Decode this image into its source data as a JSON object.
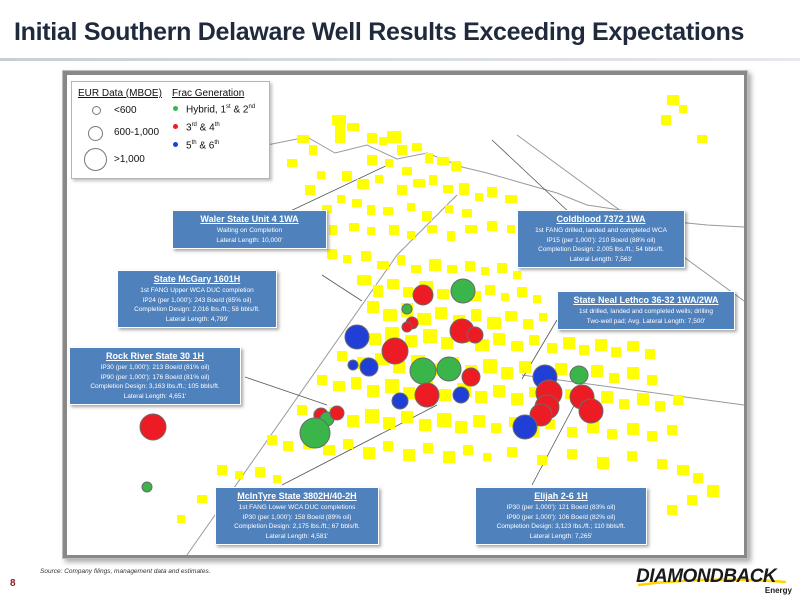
{
  "page": {
    "title": "Initial Southern Delaware Well Results Exceeding Expectations",
    "page_number": "8",
    "source": "Source:  Company filings, management data and estimates."
  },
  "logo": {
    "brand": "DIAMONDBACK",
    "sub": "Energy"
  },
  "legend": {
    "eur_header": "EUR Data (MBOE)",
    "eur_items": [
      "<600",
      "600-1,000",
      ">1,000"
    ],
    "frac_header": "Frac Generation",
    "frac_items": [
      {
        "pre": "Hybrid, 1",
        "sup1": "st",
        "mid": " & 2",
        "sup2": "nd",
        "color": "#39b54a"
      },
      {
        "pre": "3",
        "sup1": "rd",
        "mid": " & 4",
        "sup2": "th",
        "color": "#ed1c24"
      },
      {
        "pre": "5",
        "sup1": "th",
        "mid": " & 6",
        "sup2": "th",
        "color": "#1f3fd6"
      }
    ]
  },
  "callouts": {
    "waler": {
      "title": "Waler State Unit 4 1WA",
      "lines": [
        "Waiting on Completion",
        "Lateral Length: 10,000'"
      ]
    },
    "coldblood": {
      "title": "Coldblood 7372 1WA",
      "lines": [
        "1st FANG drilled, landed and completed WCA",
        "IP15 (per 1,000'): 210 Boe/d (88% oil)",
        "Completion Design: 2,005 lbs./ft.; 54 bbls/ft.",
        "Lateral Length: 7,563'"
      ]
    },
    "mcgary": {
      "title": "State McGary 1601H",
      "lines": [
        "1st FANG Upper WCA DUC completion",
        "IP24 (per 1,000'): 243 Boe/d (85% oil)",
        "Completion Design: 2,016 lbs./ft.; 58 bbls/ft.",
        "Lateral Length: 4,799'"
      ]
    },
    "neal": {
      "title": "State Neal Lethco 36-32 1WA/2WA",
      "lines": [
        "1st drilled, landed and completed wells; drilling",
        "Two-well pad; Avg. Lateral Length: 7,500'"
      ]
    },
    "rockriver": {
      "title": "Rock River State 30 1H",
      "lines": [
        "IP30 (per 1,000'): 213 Boe/d (81% oil)",
        "IP90 (per 1,000'): 176 Boe/d (81% oil)",
        "Completion Design: 3,163 lbs./ft.; 105 bbls/ft.",
        "Lateral Length: 4,651'"
      ]
    },
    "mcintyre": {
      "title": "McInTyre State 3802H/40-2H",
      "lines": [
        "1st FANG Lower WCA DUC completions",
        "IP30 (per 1,000'): 158 Boe/d (89% oil)",
        "Completion Design: 2,175 lbs./ft.; 67 bbls/ft.",
        "Lateral Length: 4,581'"
      ]
    },
    "elijah": {
      "title": "Elijah 2-6 1H",
      "lines": [
        "IP30 (per 1,000'): 121 Boe/d (83% oil)",
        "IP90 (per 1,000'): 106 Boe/d (82% oil)",
        "Completion Design: 3,123 lbs./ft.; 110 bbls/ft.",
        "Lateral Length: 7,265'"
      ]
    }
  },
  "map": {
    "acreage_color": "#ffff00",
    "well_colors": {
      "gen12": "#39b54a",
      "gen34": "#ed1c24",
      "gen56": "#1f3fd6"
    }
  }
}
